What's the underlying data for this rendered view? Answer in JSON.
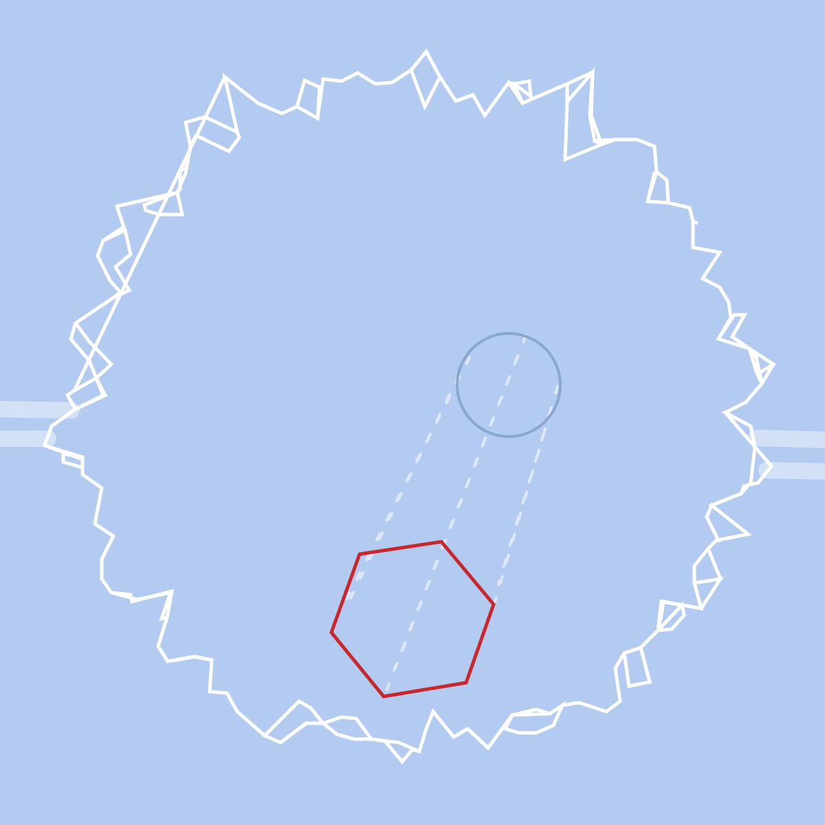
{
  "scene": {
    "background_color": "#b3cbf0",
    "arena_outline_color": "#ffffff",
    "player_shape": "hexagon",
    "player_color": "#c8282d",
    "target_shape": "circle",
    "target_color": "#8aa7cf",
    "trajectory_style": "dashed",
    "trajectory_color": "#dde8fa",
    "side_track_color": "#d3e1f7",
    "side_tracks": [
      "left",
      "right"
    ]
  }
}
